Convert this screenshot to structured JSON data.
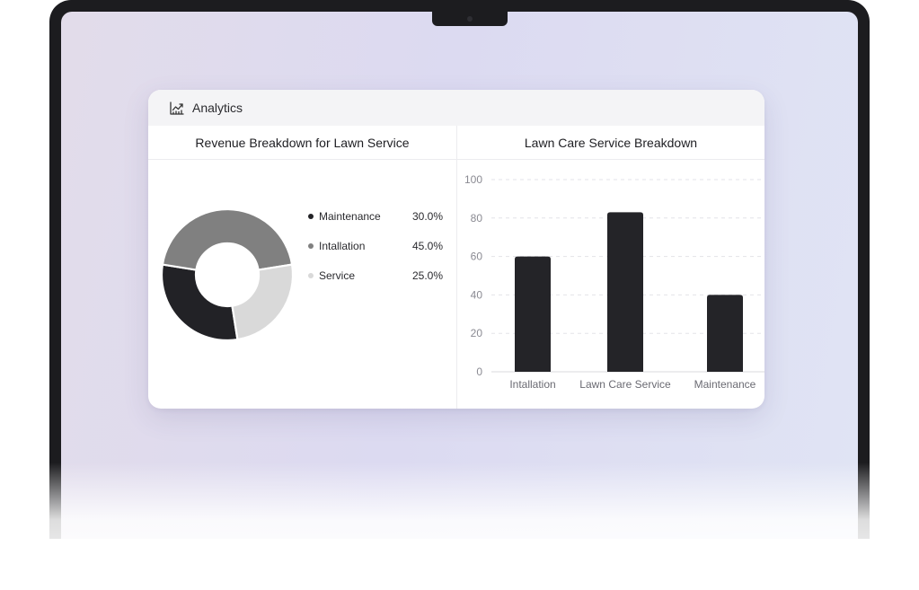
{
  "card": {
    "title": "Analytics",
    "icon": "chart-trend-icon"
  },
  "donut": {
    "title": "Revenue Breakdown for Lawn Service",
    "items": [
      {
        "label": "Maintenance",
        "pct_text": "30.0%",
        "value": 30,
        "color": "#222226"
      },
      {
        "label": "Intallation",
        "pct_text": "45.0%",
        "value": 45,
        "color": "#808080"
      },
      {
        "label": "Service",
        "pct_text": "25.0%",
        "value": 25,
        "color": "#d9d9d9"
      }
    ]
  },
  "chart_data": {
    "type": "bar",
    "title": "Lawn Care Service Breakdown",
    "categories": [
      "Intallation",
      "Lawn Care Service",
      "Maintenance"
    ],
    "values": [
      60,
      83,
      40
    ],
    "yticks": [
      "0",
      "20",
      "40",
      "60",
      "80",
      "100"
    ],
    "ylim": [
      0,
      100
    ],
    "grid": true,
    "bar_color": "#242428"
  }
}
